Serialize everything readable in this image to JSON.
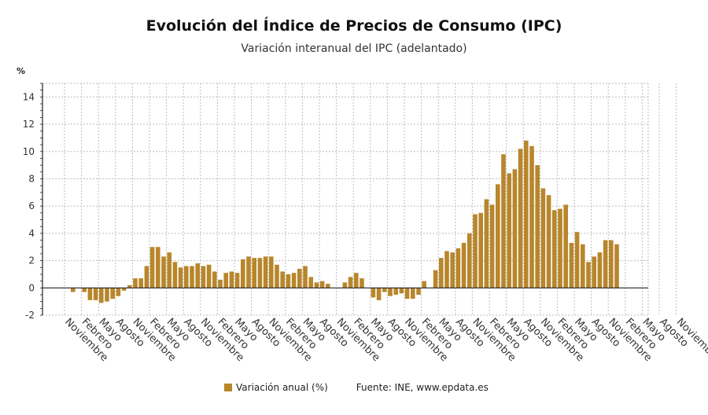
{
  "header": {
    "title": "Evolución del Índice de Precios de Consumo (IPC)",
    "subtitle": "Variación interanual del IPC (adelantado)",
    "unit": "%"
  },
  "legend": {
    "series_label": "Variación anual (%)",
    "source": "Fuente: INE, www.epdata.es"
  },
  "colors": {
    "bar": "#b8862b",
    "grid": "#bdbdbd",
    "axis": "#222222"
  },
  "chart_data": {
    "type": "bar",
    "ylim": [
      -2,
      15
    ],
    "yticks": [
      -2,
      0,
      2,
      4,
      6,
      8,
      10,
      12,
      14
    ],
    "xtick_labels": [
      "Noviembre",
      "Febrero",
      "Mayo",
      "Agosto",
      "Noviembre",
      "Febrero",
      "Mayo",
      "Agosto",
      "Noviembre",
      "Febrero",
      "Mayo",
      "Agosto",
      "Noviembre",
      "Febrero",
      "Mayo",
      "Agosto",
      "Noviembre",
      "Febrero",
      "Mayo",
      "Agosto",
      "Noviembre",
      "Febrero",
      "Mayo",
      "Agosto",
      "Noviembre",
      "Febrero",
      "Mayo",
      "Agosto",
      "Noviembre",
      "Febrero",
      "Mayo",
      "Agosto",
      "Noviembre",
      "Febrero",
      "Mayo",
      "Agosto",
      "Noviembre"
    ],
    "grid": true,
    "legend_position": "bottom",
    "series": [
      {
        "name": "Variación anual (%)",
        "values": [
          0.0,
          -0.3,
          0.0,
          -0.3,
          -0.9,
          -0.9,
          -1.1,
          -1.0,
          -0.8,
          -0.6,
          -0.2,
          0.2,
          0.7,
          0.7,
          1.6,
          3.0,
          3.0,
          2.3,
          2.6,
          1.9,
          1.5,
          1.6,
          1.6,
          1.8,
          1.6,
          1.7,
          1.2,
          0.6,
          1.1,
          1.2,
          1.1,
          2.1,
          2.3,
          2.2,
          2.2,
          2.3,
          2.3,
          1.7,
          1.2,
          1.0,
          1.1,
          1.4,
          1.6,
          0.8,
          0.4,
          0.5,
          0.3,
          0.0,
          0.0,
          0.4,
          0.8,
          1.1,
          0.7,
          0.0,
          -0.7,
          -0.9,
          -0.3,
          -0.6,
          -0.5,
          -0.4,
          -0.8,
          -0.8,
          -0.5,
          0.5,
          0.0,
          1.3,
          2.2,
          2.7,
          2.6,
          2.9,
          3.3,
          4.0,
          5.4,
          5.5,
          6.5,
          6.1,
          7.6,
          9.8,
          8.4,
          8.7,
          10.2,
          10.8,
          10.4,
          9.0,
          7.3,
          6.8,
          5.7,
          5.8,
          6.1,
          3.3,
          4.1,
          3.2,
          1.9,
          2.3,
          2.6,
          3.5,
          3.5,
          3.2
        ]
      }
    ]
  }
}
